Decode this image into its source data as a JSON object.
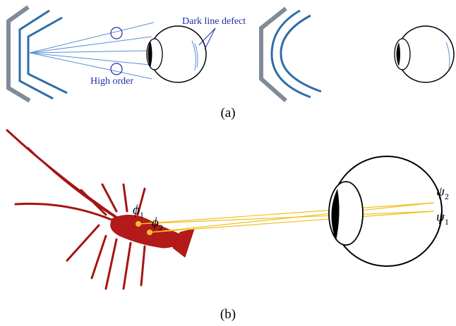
{
  "panel_a": {
    "label": "(a)",
    "defect_label": "Dark line defect",
    "high_order_label": "High order"
  },
  "panel_b": {
    "label": "(b)",
    "phi1": {
      "symbol": "ϕ",
      "sub": "1"
    },
    "phi2": {
      "symbol": "ϕ",
      "sub": "2"
    },
    "psi2": {
      "symbol": "ψ",
      "sub": "2"
    },
    "psi1": {
      "symbol": "ψ",
      "sub": "1"
    }
  }
}
